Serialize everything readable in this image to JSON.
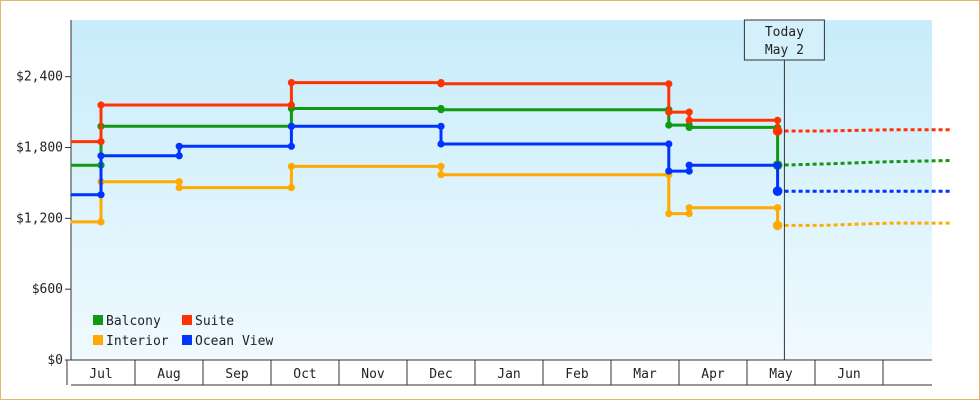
{
  "chart_data": {
    "type": "line",
    "title": "",
    "xlabel": "",
    "ylabel": "",
    "ylim": [
      0,
      2880
    ],
    "y_ticks": [
      {
        "value": 0,
        "label": "$0"
      },
      {
        "value": 600,
        "label": "$600"
      },
      {
        "value": 1200,
        "label": "$1,200"
      },
      {
        "value": 1800,
        "label": "$1,800"
      },
      {
        "value": 2400,
        "label": "$2,400"
      }
    ],
    "x_months": [
      "Jul",
      "Aug",
      "Sep",
      "Oct",
      "Nov",
      "Dec",
      "Jan",
      "Feb",
      "Mar",
      "Apr",
      "May",
      "Jun"
    ],
    "x_range": [
      -0.45,
      12.5
    ],
    "today": {
      "line1": "Today",
      "line2": "May 2",
      "x": 10.05
    },
    "grid": false,
    "legend_position": "bottom-left",
    "series": [
      {
        "name": "Balcony",
        "color": "#119911",
        "points": [
          [
            -0.45,
            1650
          ],
          [
            0.0,
            1650
          ],
          [
            0.0,
            1980
          ],
          [
            2.8,
            1980
          ],
          [
            2.8,
            2130
          ],
          [
            5.0,
            2130
          ],
          [
            5.0,
            2120
          ],
          [
            8.35,
            2120
          ],
          [
            8.35,
            1990
          ],
          [
            8.65,
            1990
          ],
          [
            8.65,
            1970
          ],
          [
            9.95,
            1970
          ],
          [
            9.95,
            1650
          ]
        ],
        "forecast": [
          [
            9.95,
            1650
          ],
          [
            10.6,
            1660
          ],
          [
            11.6,
            1680
          ],
          [
            12.5,
            1690
          ]
        ]
      },
      {
        "name": "Suite",
        "color": "#ff3300",
        "points": [
          [
            -0.45,
            1850
          ],
          [
            0.0,
            1850
          ],
          [
            0.0,
            2160
          ],
          [
            2.8,
            2160
          ],
          [
            2.8,
            2350
          ],
          [
            5.0,
            2350
          ],
          [
            5.0,
            2340
          ],
          [
            8.35,
            2340
          ],
          [
            8.35,
            2100
          ],
          [
            8.65,
            2100
          ],
          [
            8.65,
            2030
          ],
          [
            9.95,
            2030
          ],
          [
            9.95,
            1940
          ]
        ],
        "forecast": [
          [
            9.95,
            1940
          ],
          [
            10.6,
            1940
          ],
          [
            11.6,
            1950
          ],
          [
            12.5,
            1950
          ]
        ]
      },
      {
        "name": "Interior",
        "color": "#ffaa00",
        "points": [
          [
            -0.45,
            1170
          ],
          [
            0.0,
            1170
          ],
          [
            0.0,
            1510
          ],
          [
            1.15,
            1510
          ],
          [
            1.15,
            1460
          ],
          [
            2.8,
            1460
          ],
          [
            2.8,
            1640
          ],
          [
            5.0,
            1640
          ],
          [
            5.0,
            1570
          ],
          [
            8.35,
            1570
          ],
          [
            8.35,
            1240
          ],
          [
            8.65,
            1240
          ],
          [
            8.65,
            1290
          ],
          [
            9.95,
            1290
          ],
          [
            9.95,
            1140
          ]
        ],
        "forecast": [
          [
            9.95,
            1140
          ],
          [
            10.6,
            1140
          ],
          [
            11.6,
            1160
          ],
          [
            12.5,
            1160
          ]
        ]
      },
      {
        "name": "Ocean View",
        "color": "#0033ff",
        "points": [
          [
            -0.45,
            1400
          ],
          [
            0.0,
            1400
          ],
          [
            0.0,
            1730
          ],
          [
            1.15,
            1730
          ],
          [
            1.15,
            1810
          ],
          [
            2.8,
            1810
          ],
          [
            2.8,
            1980
          ],
          [
            5.0,
            1980
          ],
          [
            5.0,
            1830
          ],
          [
            8.35,
            1830
          ],
          [
            8.35,
            1600
          ],
          [
            8.65,
            1600
          ],
          [
            8.65,
            1650
          ],
          [
            9.95,
            1650
          ],
          [
            9.95,
            1430
          ]
        ],
        "forecast": [
          [
            9.95,
            1430
          ],
          [
            10.6,
            1430
          ],
          [
            11.6,
            1430
          ],
          [
            12.5,
            1430
          ]
        ]
      }
    ]
  }
}
